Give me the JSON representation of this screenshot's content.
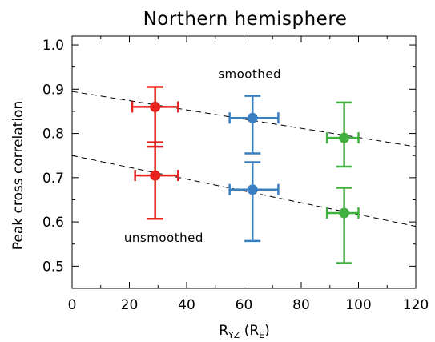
{
  "chart_data": {
    "type": "scatter",
    "title": "Northern hemisphere",
    "xlabel": {
      "main": "R",
      "sub": "YZ",
      "open": " (R",
      "unit_sub": "E",
      "close": ")"
    },
    "ylabel": "Peak cross correlation",
    "xlim": [
      0,
      120
    ],
    "ylim": [
      0.45,
      1.02
    ],
    "xticks": [
      0,
      20,
      40,
      60,
      80,
      100,
      120
    ],
    "yticks": [
      "0.5",
      "0.6",
      "0.7",
      "0.8",
      "0.9",
      "1.0"
    ],
    "grid": false,
    "series": [
      {
        "group": "smoothed",
        "points": [
          {
            "x": 29,
            "y": 0.86,
            "xerr": [
              21,
              37
            ],
            "yerr": [
              0.77,
              0.905
            ],
            "color": "#e8221e"
          },
          {
            "x": 63,
            "y": 0.835,
            "xerr": [
              55,
              72
            ],
            "yerr": [
              0.755,
              0.885
            ],
            "color": "#3a7fc1"
          },
          {
            "x": 95,
            "y": 0.79,
            "xerr": [
              89,
              100
            ],
            "yerr": [
              0.725,
              0.87
            ],
            "color": "#40b040"
          }
        ],
        "fit": {
          "x": [
            0,
            120
          ],
          "y": [
            0.895,
            0.77
          ]
        }
      },
      {
        "group": "unsmoothed",
        "points": [
          {
            "x": 29,
            "y": 0.705,
            "xerr": [
              22,
              37
            ],
            "yerr": [
              0.607,
              0.78
            ],
            "color": "#e8221e"
          },
          {
            "x": 63,
            "y": 0.673,
            "xerr": [
              55,
              72
            ],
            "yerr": [
              0.557,
              0.735
            ],
            "color": "#3a7fc1"
          },
          {
            "x": 95,
            "y": 0.62,
            "xerr": [
              89,
              100
            ],
            "yerr": [
              0.507,
              0.677
            ],
            "color": "#40b040"
          }
        ],
        "fit": {
          "x": [
            0,
            120
          ],
          "y": [
            0.75,
            0.59
          ]
        }
      }
    ],
    "annotations": [
      {
        "text": "smoothed",
        "x": 62,
        "y": 0.925
      },
      {
        "text": "unsmoothed",
        "x": 32,
        "y": 0.555
      }
    ]
  }
}
